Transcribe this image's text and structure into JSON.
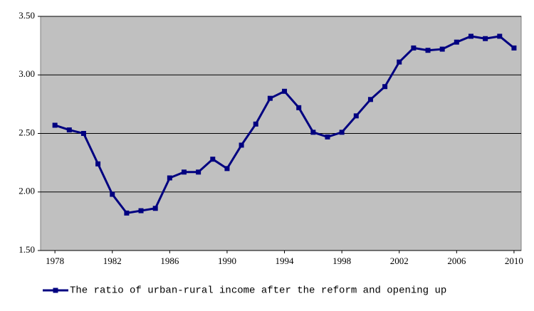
{
  "chart_data": {
    "type": "line",
    "x": [
      1978,
      1979,
      1980,
      1981,
      1982,
      1983,
      1984,
      1985,
      1986,
      1987,
      1988,
      1989,
      1990,
      1991,
      1992,
      1993,
      1994,
      1995,
      1996,
      1997,
      1998,
      1999,
      2000,
      2001,
      2002,
      2003,
      2004,
      2005,
      2006,
      2007,
      2008,
      2009,
      2010
    ],
    "series": [
      {
        "name": "The ratio of urban-rural income after the reform and opening up",
        "color": "#000080",
        "values": [
          2.57,
          2.53,
          2.5,
          2.24,
          1.98,
          1.82,
          1.84,
          1.86,
          2.12,
          2.17,
          2.17,
          2.28,
          2.2,
          2.4,
          2.58,
          2.8,
          2.86,
          2.72,
          2.51,
          2.47,
          2.51,
          2.65,
          2.79,
          2.9,
          3.11,
          3.23,
          3.21,
          3.22,
          3.28,
          3.33,
          3.31,
          3.33,
          3.23
        ]
      }
    ],
    "xlim": [
      1977,
      2010.5
    ],
    "xticks": [
      1978,
      1982,
      1986,
      1990,
      1994,
      1998,
      2002,
      2006,
      2010
    ],
    "ylim": [
      1.5,
      3.5
    ],
    "yticks": [
      {
        "value": 1.5,
        "label": "1.50"
      },
      {
        "value": 2,
        "label": "2.00"
      },
      {
        "value": 2.5,
        "label": "2.50"
      },
      {
        "value": 3,
        "label": "3.00"
      },
      {
        "value": 3.5,
        "label": "3.50"
      }
    ],
    "grid": true,
    "background": "#c0c0c0"
  }
}
